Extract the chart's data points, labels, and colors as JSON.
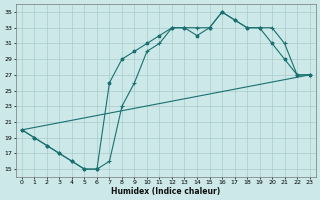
{
  "xlabel": "Humidex (Indice chaleur)",
  "xlim": [
    -0.5,
    23.5
  ],
  "ylim": [
    14,
    36
  ],
  "yticks": [
    15,
    17,
    19,
    21,
    23,
    25,
    27,
    29,
    31,
    33,
    35
  ],
  "xticks": [
    0,
    1,
    2,
    3,
    4,
    5,
    6,
    7,
    8,
    9,
    10,
    11,
    12,
    13,
    14,
    15,
    16,
    17,
    18,
    19,
    20,
    21,
    22,
    23
  ],
  "background_color": "#cce8e8",
  "grid_color": "#aacccc",
  "line_color": "#1a7070",
  "line1_x": [
    0,
    1,
    2,
    3,
    4,
    5,
    6,
    7,
    8,
    9,
    10,
    11,
    12,
    13,
    14,
    15,
    16,
    17,
    18,
    19,
    20,
    21,
    22,
    23
  ],
  "line1_y": [
    20,
    19,
    18,
    17,
    16,
    15,
    15,
    16,
    23,
    26,
    30,
    31,
    33,
    33,
    33,
    33,
    35,
    34,
    33,
    33,
    33,
    31,
    27,
    27
  ],
  "line2_x": [
    0,
    1,
    2,
    3,
    4,
    5,
    6,
    7,
    8,
    9,
    10,
    11,
    12,
    13,
    14,
    15,
    16,
    17,
    18,
    19,
    20,
    21,
    22,
    23
  ],
  "line2_y": [
    20,
    19,
    18,
    17,
    16,
    15,
    15,
    26,
    29,
    30,
    31,
    32,
    33,
    33,
    32,
    33,
    35,
    34,
    33,
    33,
    31,
    29,
    27,
    27
  ],
  "line3_x": [
    0,
    23
  ],
  "line3_y": [
    20,
    27
  ]
}
